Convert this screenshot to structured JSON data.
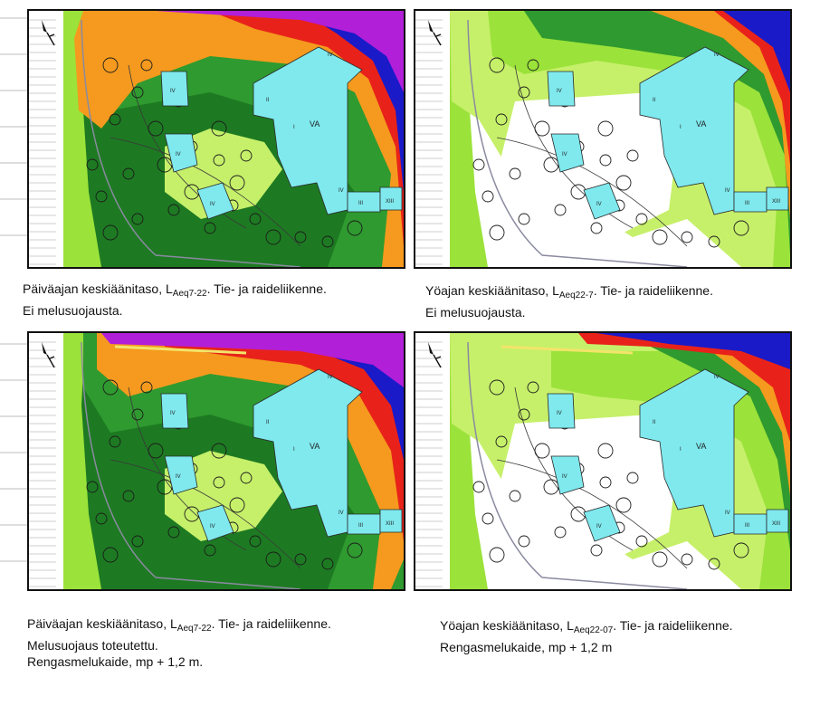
{
  "panels": [
    {
      "id": "top-left",
      "caption": {
        "line1_pre": "Päiväajan keskiäänitaso, L",
        "line1_sub": "Aeq7-22",
        "line1_post": ". Tie- ja raideliikenne.",
        "lines": [
          "Ei melusuojausta."
        ]
      }
    },
    {
      "id": "top-right",
      "caption": {
        "line1_pre": "Yöajan keskiäänitaso, L",
        "line1_sub": "Aeq22-7",
        "line1_post": ". Tie- ja raideliikenne.",
        "lines": [
          "Ei melusuojausta."
        ]
      }
    },
    {
      "id": "bottom-left",
      "caption": {
        "line1_pre": "Päiväajan keskiäänitaso, L",
        "line1_sub": "Aeq7-22",
        "line1_post": ". Tie- ja raideliikenne.",
        "lines": [
          "Melusuojaus toteutettu.",
          "Rengasmelukaide, mp + 1,2 m."
        ]
      }
    },
    {
      "id": "bottom-right",
      "caption": {
        "line1_pre": "Yöajan keskiäänitaso, L",
        "line1_sub": "Aeq22-07",
        "line1_post": ". Tie- ja raideliikenne.",
        "lines": [
          "Rengasmelukaide, mp + 1,2 m"
        ]
      }
    }
  ],
  "building_labels": {
    "iv": "IV",
    "ii": "II",
    "i": "I",
    "va": "VA",
    "iii": "III",
    "xiii": "XIII"
  },
  "noise_zone_colors": {
    "white": "#ffffff",
    "light_green": "#c6f06a",
    "lime": "#9be23a",
    "green": "#2f9a2f",
    "dark_green": "#1d7a22",
    "orange": "#f59a1e",
    "red": "#e8221a",
    "blue": "#1a1ac8",
    "purple": "#b21fd8",
    "building": "#7fe9ee",
    "barrier": "#f2e46a"
  },
  "north_arrow_icon": "north-arrow-icon"
}
